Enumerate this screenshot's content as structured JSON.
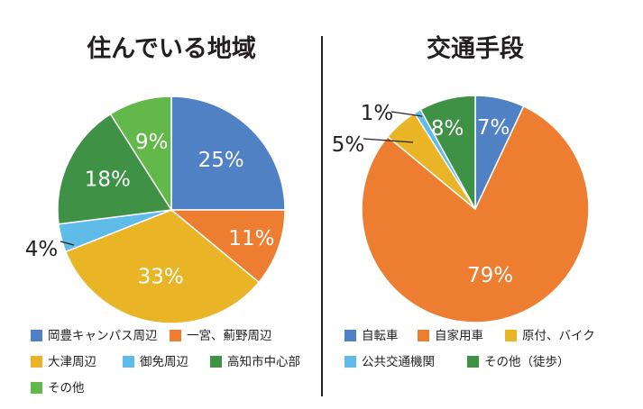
{
  "chart_data": [
    {
      "type": "pie",
      "title": "住んでいる地域",
      "slices": [
        {
          "label": "岡豊キャンパス周辺",
          "value": 25,
          "display": "25%",
          "color": "#4f81c4"
        },
        {
          "label": "一宮、薊野周辺",
          "value": 11,
          "display": "11%",
          "color": "#ed7d31"
        },
        {
          "label": "大津周辺",
          "value": 33,
          "display": "33%",
          "color": "#e9b526"
        },
        {
          "label": "御免周辺",
          "value": 4,
          "display": "4%",
          "color": "#5fbbe8"
        },
        {
          "label": "高知市中心部",
          "value": 18,
          "display": "18%",
          "color": "#3f9146"
        },
        {
          "label": "その他",
          "value": 9,
          "display": "9%",
          "color": "#62b849"
        }
      ],
      "legend_position": "bottom"
    },
    {
      "type": "pie",
      "title": "交通手段",
      "slices": [
        {
          "label": "自転車",
          "value": 7,
          "display": "7%",
          "color": "#4f81c4"
        },
        {
          "label": "自家用車",
          "value": 79,
          "display": "79%",
          "color": "#ed7d31"
        },
        {
          "label": "原付、バイク",
          "value": 5,
          "display": "5%",
          "color": "#e9b526"
        },
        {
          "label": "公共交通機関",
          "value": 1,
          "display": "1%",
          "color": "#5fbbe8"
        },
        {
          "label": "その他（徒歩）",
          "value": 8,
          "display": "8%",
          "color": "#3f9146"
        }
      ],
      "legend_position": "bottom"
    }
  ]
}
